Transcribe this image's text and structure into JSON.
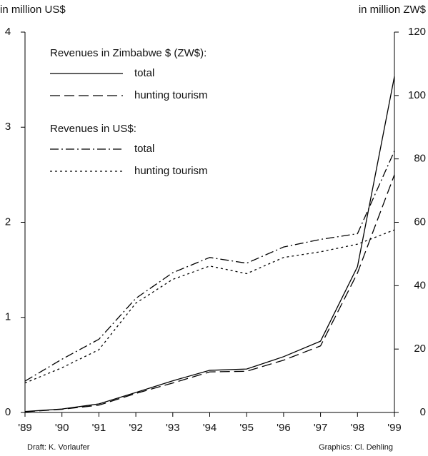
{
  "chart_data": {
    "type": "line",
    "ylabel": "in million US$",
    "y2label": "in million ZW$",
    "categories": [
      "'89",
      "'90",
      "'91",
      "'92",
      "'93",
      "'94",
      "'95",
      "'96",
      "'97",
      "'98",
      "'99"
    ],
    "legend_titles": {
      "y2": "Revenues in Zimbabwe $ (ZW$):",
      "y": "Revenues in US$:"
    },
    "series": [
      {
        "name": "total",
        "axis": "y2",
        "color": "#000000",
        "dash": "none",
        "values": [
          0.3,
          1.1,
          2.7,
          6.3,
          10,
          13.3,
          13.7,
          17.6,
          22.5,
          46,
          106
        ]
      },
      {
        "name": "hunting tourism",
        "axis": "y2",
        "color": "#000000",
        "dash": "14 6",
        "values": [
          0.2,
          1,
          2.3,
          6,
          9.3,
          12.8,
          13,
          16.5,
          21,
          44,
          75
        ]
      },
      {
        "name": "total",
        "axis": "y",
        "color": "#000000",
        "dash": "12 4 2 4",
        "values": [
          0.33,
          0.56,
          0.77,
          1.2,
          1.47,
          1.63,
          1.57,
          1.74,
          1.82,
          1.88,
          2.75
        ]
      },
      {
        "name": "hunting tourism",
        "axis": "y",
        "color": "#000000",
        "dash": "3 4",
        "values": [
          0.31,
          0.47,
          0.66,
          1.15,
          1.4,
          1.54,
          1.46,
          1.63,
          1.69,
          1.77,
          1.92
        ]
      }
    ],
    "ylim": [
      0,
      4
    ],
    "yticks": [
      0,
      1,
      2,
      3,
      4
    ],
    "y2lim": [
      0,
      120
    ],
    "y2ticks": [
      0,
      20,
      40,
      60,
      80,
      100,
      120
    ],
    "credits": [
      "Draft: K. Vorlaufer",
      "Graphics: Cl. Dehling"
    ]
  }
}
